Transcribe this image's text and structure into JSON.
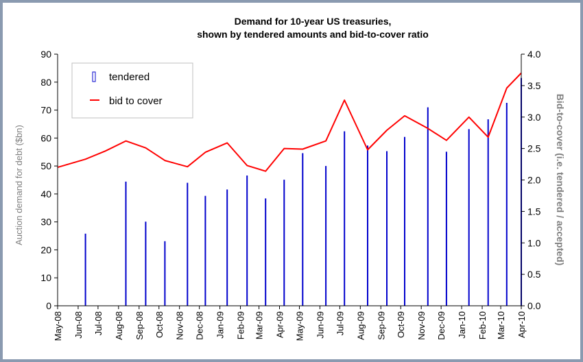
{
  "chart_data": {
    "type": "bar",
    "title": [
      "Demand for 10-year US treasuries,",
      "shown by tendered amounts and bid-to-cover ratio"
    ],
    "ylabel": "Auction demand for debt ($bn)",
    "y2label": "Bid-to-cover (i.e. tendered / accepted)",
    "xlabel": "",
    "ylim": [
      0,
      90
    ],
    "y2lim": [
      0.0,
      4.0
    ],
    "yticks": [
      "0",
      "10",
      "20",
      "30",
      "40",
      "50",
      "60",
      "70",
      "80",
      "90"
    ],
    "y2ticks": [
      "0.0",
      "0.5",
      "1.0",
      "1.5",
      "2.0",
      "2.5",
      "3.0",
      "3.5",
      "4.0"
    ],
    "grid": false,
    "legend_position": "top-left",
    "categories": [
      "May-08",
      "Jun-08",
      "Jul-08",
      "Aug-08",
      "Sep-08",
      "Oct-08",
      "Nov-08",
      "Dec-08",
      "Jan-09",
      "Feb-09",
      "Mar-09",
      "Apr-09",
      "May-09",
      "Jun-09",
      "Jul-09",
      "Aug-09",
      "Sep-09",
      "Oct-09",
      "Nov-09",
      "Dec-09",
      "Jan-10",
      "Feb-10",
      "Mar-10",
      "Apr-10"
    ],
    "x_dates": [
      "2008-05-01",
      "2008-06-01",
      "2008-07-01",
      "2008-08-01",
      "2008-09-01",
      "2008-10-01",
      "2008-11-01",
      "2008-12-01",
      "2009-01-01",
      "2009-02-01",
      "2009-03-01",
      "2009-04-01",
      "2009-05-01",
      "2009-06-01",
      "2009-07-01",
      "2009-08-01",
      "2009-09-01",
      "2009-10-01",
      "2009-11-01",
      "2009-12-01",
      "2010-01-01",
      "2010-02-01",
      "2010-03-01",
      "2010-04-01"
    ],
    "series": [
      {
        "name": "tendered",
        "axis": "left",
        "kind": "bar",
        "color": "#0000cc",
        "x": [
          "2008-06-12",
          "2008-08-12",
          "2008-09-11",
          "2008-10-10",
          "2008-11-13",
          "2008-12-10",
          "2009-01-12",
          "2009-02-11",
          "2009-03-11",
          "2009-04-08",
          "2009-05-06",
          "2009-06-10",
          "2009-07-08",
          "2009-08-12",
          "2009-09-10",
          "2009-10-07",
          "2009-11-11",
          "2009-12-09",
          "2010-01-12",
          "2010-02-10",
          "2010-03-10",
          "2010-04-01"
        ],
        "values": [
          25.8,
          44.4,
          30.1,
          23.1,
          44.0,
          39.3,
          41.6,
          46.6,
          38.4,
          45.1,
          54.6,
          50.0,
          62.4,
          57.3,
          55.3,
          60.4,
          71.0,
          55.1,
          63.2,
          66.7,
          72.6,
          81.5
        ]
      },
      {
        "name": "bid to cover",
        "axis": "right",
        "kind": "line",
        "color": "#ff0000",
        "x": [
          "2008-05-01",
          "2008-06-12",
          "2008-07-12",
          "2008-08-12",
          "2008-09-11",
          "2008-10-10",
          "2008-11-13",
          "2008-12-10",
          "2009-01-12",
          "2009-02-11",
          "2009-03-11",
          "2009-04-08",
          "2009-05-06",
          "2009-06-10",
          "2009-07-08",
          "2009-08-12",
          "2009-09-10",
          "2009-10-07",
          "2009-11-11",
          "2009-12-09",
          "2010-01-12",
          "2010-02-10",
          "2010-03-10",
          "2010-04-01"
        ],
        "values": [
          2.2,
          2.33,
          2.46,
          2.62,
          2.51,
          2.31,
          2.21,
          2.44,
          2.59,
          2.23,
          2.14,
          2.5,
          2.49,
          2.62,
          3.27,
          2.48,
          2.79,
          3.02,
          2.82,
          2.63,
          3.0,
          2.68,
          3.46,
          3.7
        ]
      }
    ]
  }
}
